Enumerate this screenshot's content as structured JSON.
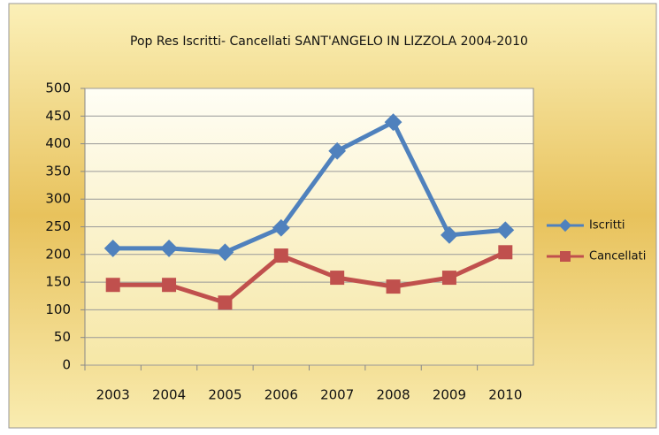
{
  "chart_data": {
    "type": "line",
    "title": "Pop Res  Iscritti- Cancellati  SANT'ANGELO IN LIZZOLA  2004-2010",
    "categories": [
      "2003",
      "2004",
      "2005",
      "2006",
      "2007",
      "2008",
      "2009",
      "2010"
    ],
    "series": [
      {
        "name": "Iscritti",
        "color": "#4f81bd",
        "values": [
          211,
          211,
          204,
          248,
          387,
          439,
          235,
          244
        ]
      },
      {
        "name": "Cancellati",
        "color": "#c0504d",
        "values": [
          145,
          145,
          113,
          198,
          158,
          142,
          158,
          204
        ]
      }
    ],
    "ylim": [
      0,
      500
    ],
    "yticks": [
      0,
      50,
      100,
      150,
      200,
      250,
      300,
      350,
      400,
      450,
      500
    ],
    "grid": true,
    "legend": "right"
  }
}
